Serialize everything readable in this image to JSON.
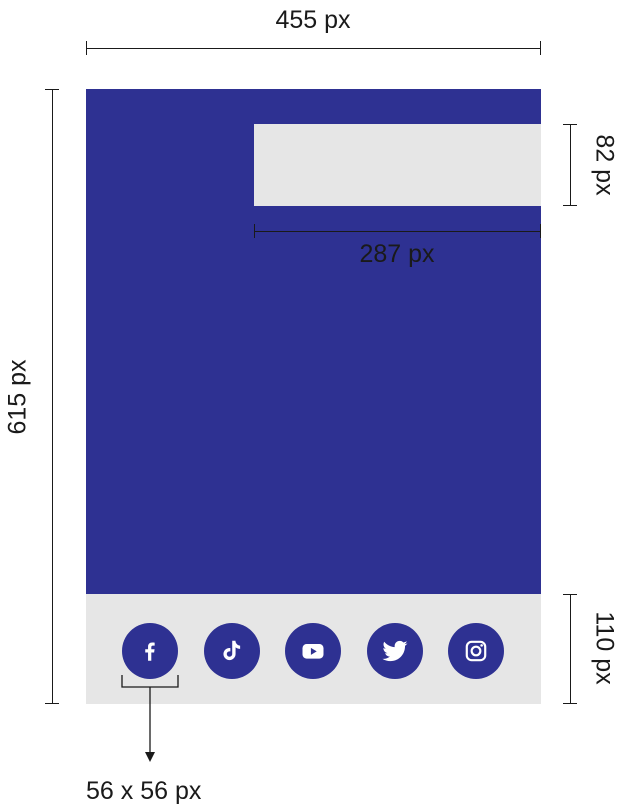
{
  "dimensions": {
    "width_label": "455 px",
    "height_label": "615 px",
    "banner_height_label": "82 px",
    "banner_width_label": "287 px",
    "footer_height_label": "110 px",
    "icon_size_label": "56 x 56 px"
  },
  "colors": {
    "background_panel": "#2e3192",
    "banner": "#e6e6e6",
    "footer": "#e6e6e6",
    "icon_circle": "#2e3192",
    "icon_glyph": "#ffffff"
  },
  "social_icons": [
    "facebook-icon",
    "tiktok-icon",
    "youtube-icon",
    "twitter-icon",
    "instagram-icon"
  ]
}
